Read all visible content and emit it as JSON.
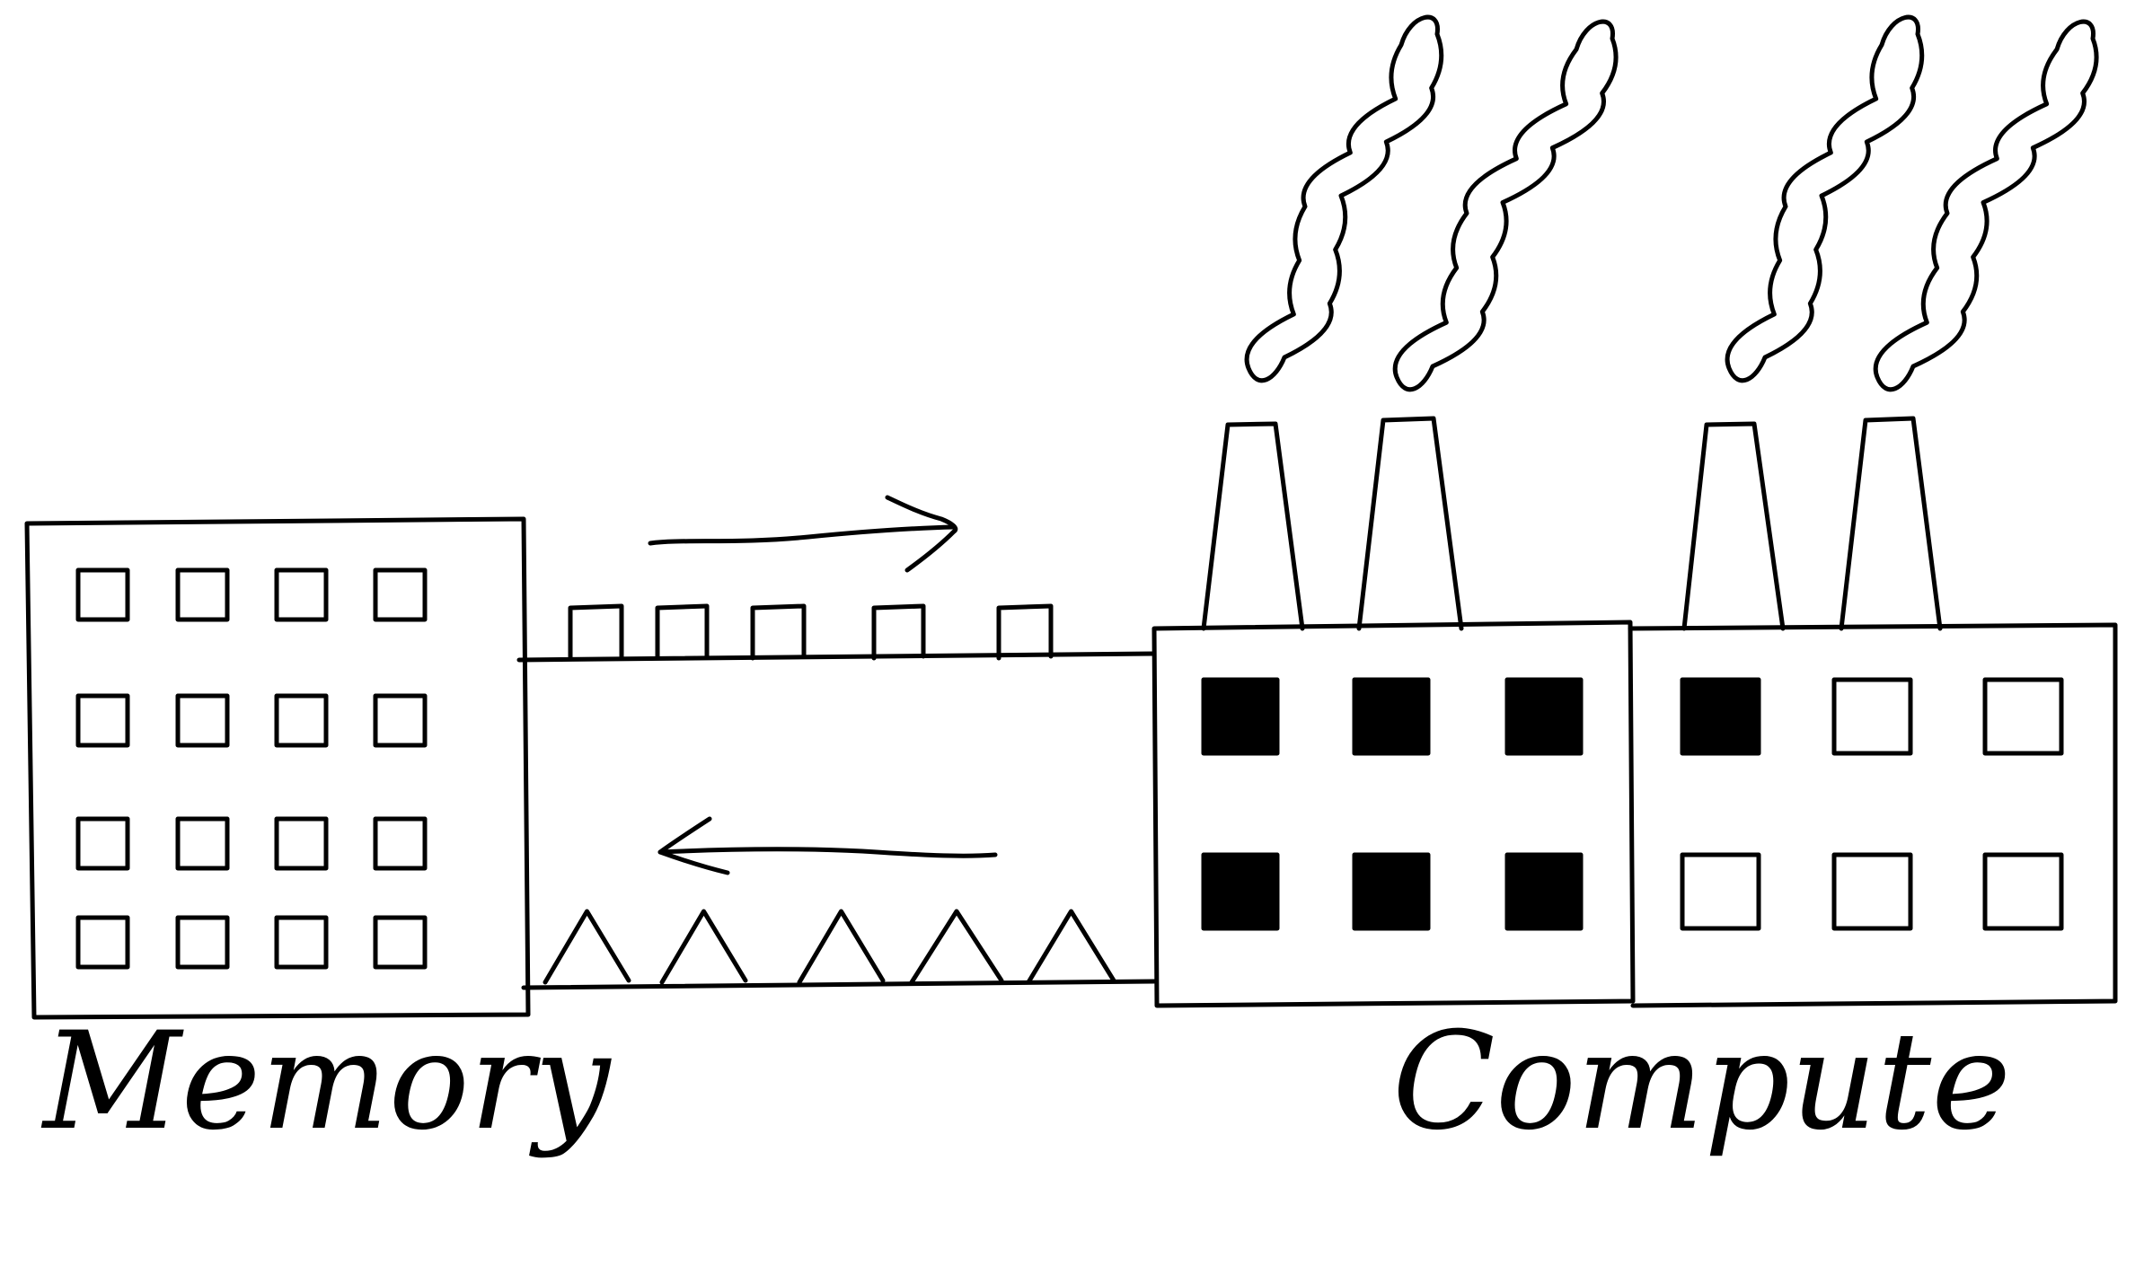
{
  "diagram": {
    "memory": {
      "label": "Memory"
    },
    "compute": {
      "label": "Compute"
    },
    "colors": {
      "ink": "#000000",
      "background": "#ffffff"
    }
  }
}
